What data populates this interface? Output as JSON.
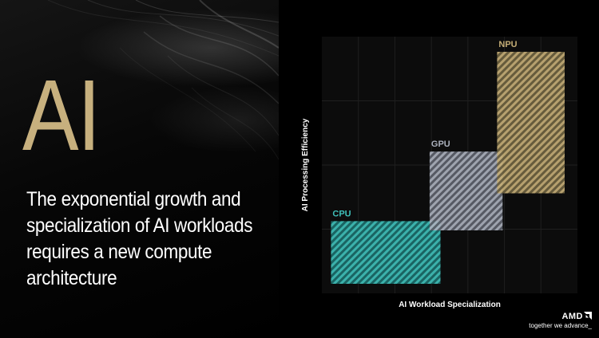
{
  "slide": {
    "heading": "AI",
    "tagline": "The exponential growth and specialization of AI workloads requires a new compute architecture",
    "colors": {
      "heading": "#c7b07e",
      "text": "#ffffff",
      "background": "#000000"
    }
  },
  "brand": {
    "logo_text": "AMD",
    "tagline": "together we advance_"
  },
  "chart_data": {
    "type": "diagram",
    "ylabel": "AI Processing Efficiency",
    "xlabel": "AI Workload Specialization",
    "grid": true,
    "axis_ticks": false,
    "regions": [
      {
        "name": "CPU",
        "color": "#3fbfb9",
        "x_range": [
          0.05,
          0.65
        ],
        "y_range": [
          0.0,
          0.27
        ]
      },
      {
        "name": "GPU",
        "color": "#aab0bc",
        "x_range": [
          0.59,
          0.99
        ],
        "y_range": [
          0.23,
          0.57
        ]
      },
      {
        "name": "NPU",
        "color": "#c4ad76",
        "x_range": [
          0.96,
          1.33
        ],
        "y_range": [
          0.39,
          1.0
        ]
      }
    ]
  }
}
